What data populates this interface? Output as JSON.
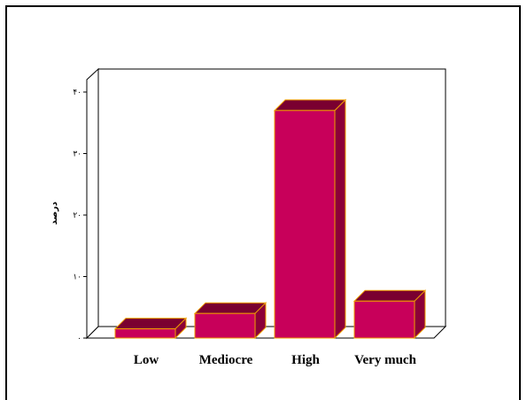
{
  "chart_data": {
    "type": "bar",
    "style": "3d",
    "categories": [
      "Low",
      "Mediocre",
      "High",
      "Very much"
    ],
    "values": [
      1.5,
      4,
      37,
      6
    ],
    "ylabel": "درصد",
    "ylim": [
      0,
      40
    ],
    "yticks": [
      0,
      10,
      20,
      30,
      40
    ],
    "ytick_labels": [
      "۰",
      "۱۰",
      "۲۰",
      "۳۰",
      "۴۰"
    ],
    "grid": false,
    "legend": "none",
    "colors": {
      "bar_front": "#c8005a",
      "bar_top": "#7a0030",
      "bar_side": "#8c0038",
      "bar_edge": "#f0a000",
      "wall": "#ffffff",
      "axis": "#000000"
    }
  }
}
